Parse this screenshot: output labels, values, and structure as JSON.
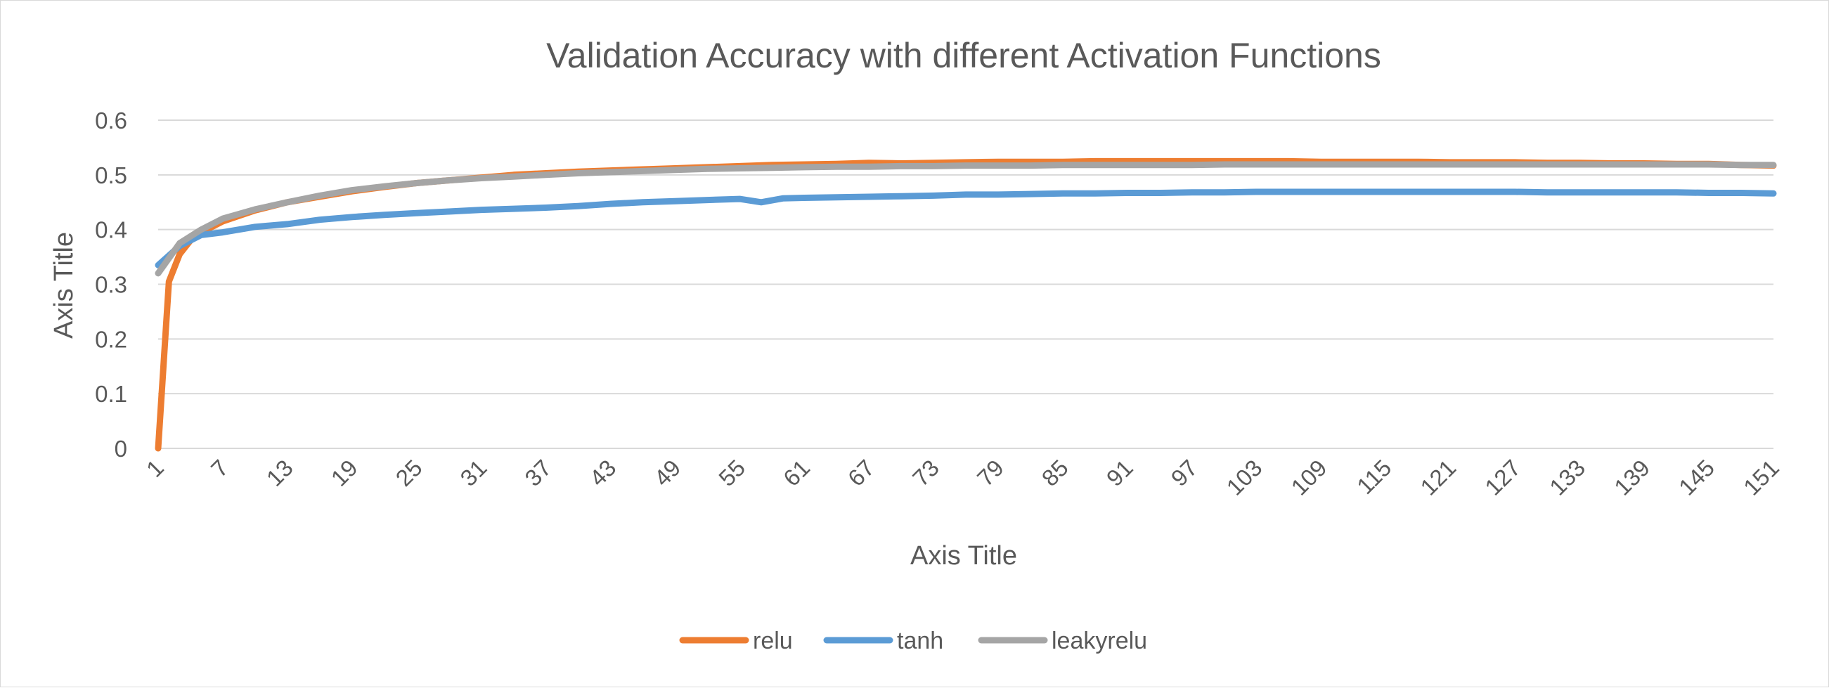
{
  "chart_data": {
    "type": "line",
    "title": "Validation Accuracy with different Activation Functions",
    "xlabel": "Axis Title",
    "ylabel": "Axis Title",
    "ylim": [
      0,
      0.6
    ],
    "yticks": [
      "0",
      "0.1",
      "0.2",
      "0.3",
      "0.4",
      "0.5",
      "0.6"
    ],
    "x_start": 1,
    "x_end": 151,
    "xticks": [
      "1",
      "7",
      "13",
      "19",
      "25",
      "31",
      "37",
      "43",
      "49",
      "55",
      "61",
      "67",
      "73",
      "79",
      "85",
      "91",
      "97",
      "103",
      "109",
      "115",
      "121",
      "127",
      "133",
      "139",
      "145",
      "151"
    ],
    "grid": "horizontal",
    "legend_position": "bottom",
    "series": [
      {
        "name": "relu",
        "color": "#ED7D31",
        "points": [
          [
            1,
            0.0
          ],
          [
            2,
            0.305
          ],
          [
            3,
            0.355
          ],
          [
            4,
            0.38
          ],
          [
            5,
            0.395
          ],
          [
            7,
            0.415
          ],
          [
            10,
            0.435
          ],
          [
            13,
            0.45
          ],
          [
            16,
            0.46
          ],
          [
            19,
            0.47
          ],
          [
            22,
            0.478
          ],
          [
            25,
            0.485
          ],
          [
            28,
            0.49
          ],
          [
            31,
            0.495
          ],
          [
            34,
            0.5
          ],
          [
            37,
            0.503
          ],
          [
            40,
            0.506
          ],
          [
            43,
            0.508
          ],
          [
            46,
            0.51
          ],
          [
            49,
            0.512
          ],
          [
            52,
            0.514
          ],
          [
            55,
            0.516
          ],
          [
            58,
            0.518
          ],
          [
            61,
            0.519
          ],
          [
            64,
            0.52
          ],
          [
            67,
            0.522
          ],
          [
            70,
            0.521
          ],
          [
            73,
            0.522
          ],
          [
            76,
            0.523
          ],
          [
            79,
            0.524
          ],
          [
            82,
            0.524
          ],
          [
            85,
            0.524
          ],
          [
            88,
            0.525
          ],
          [
            91,
            0.525
          ],
          [
            94,
            0.525
          ],
          [
            97,
            0.525
          ],
          [
            100,
            0.525
          ],
          [
            103,
            0.525
          ],
          [
            106,
            0.525
          ],
          [
            109,
            0.524
          ],
          [
            112,
            0.524
          ],
          [
            115,
            0.524
          ],
          [
            118,
            0.524
          ],
          [
            121,
            0.523
          ],
          [
            124,
            0.523
          ],
          [
            127,
            0.523
          ],
          [
            130,
            0.522
          ],
          [
            133,
            0.522
          ],
          [
            136,
            0.521
          ],
          [
            139,
            0.521
          ],
          [
            142,
            0.52
          ],
          [
            145,
            0.52
          ],
          [
            148,
            0.518
          ],
          [
            151,
            0.517
          ]
        ]
      },
      {
        "name": "tanh",
        "color": "#5B9BD5",
        "points": [
          [
            1,
            0.335
          ],
          [
            3,
            0.37
          ],
          [
            5,
            0.39
          ],
          [
            7,
            0.395
          ],
          [
            10,
            0.405
          ],
          [
            13,
            0.41
          ],
          [
            16,
            0.418
          ],
          [
            19,
            0.423
          ],
          [
            22,
            0.427
          ],
          [
            25,
            0.43
          ],
          [
            28,
            0.433
          ],
          [
            31,
            0.436
          ],
          [
            34,
            0.438
          ],
          [
            37,
            0.44
          ],
          [
            40,
            0.443
          ],
          [
            43,
            0.447
          ],
          [
            46,
            0.45
          ],
          [
            49,
            0.452
          ],
          [
            52,
            0.454
          ],
          [
            55,
            0.456
          ],
          [
            57,
            0.45
          ],
          [
            59,
            0.457
          ],
          [
            61,
            0.458
          ],
          [
            64,
            0.459
          ],
          [
            67,
            0.46
          ],
          [
            70,
            0.461
          ],
          [
            73,
            0.462
          ],
          [
            76,
            0.464
          ],
          [
            79,
            0.464
          ],
          [
            82,
            0.465
          ],
          [
            85,
            0.466
          ],
          [
            88,
            0.466
          ],
          [
            91,
            0.467
          ],
          [
            94,
            0.467
          ],
          [
            97,
            0.468
          ],
          [
            100,
            0.468
          ],
          [
            103,
            0.469
          ],
          [
            106,
            0.469
          ],
          [
            109,
            0.469
          ],
          [
            112,
            0.469
          ],
          [
            115,
            0.469
          ],
          [
            118,
            0.469
          ],
          [
            121,
            0.469
          ],
          [
            124,
            0.469
          ],
          [
            127,
            0.469
          ],
          [
            130,
            0.468
          ],
          [
            133,
            0.468
          ],
          [
            136,
            0.468
          ],
          [
            139,
            0.468
          ],
          [
            142,
            0.468
          ],
          [
            145,
            0.467
          ],
          [
            148,
            0.467
          ],
          [
            151,
            0.466
          ]
        ]
      },
      {
        "name": "leakyrelu",
        "color": "#A5A5A5",
        "points": [
          [
            1,
            0.32
          ],
          [
            3,
            0.375
          ],
          [
            5,
            0.4
          ],
          [
            7,
            0.42
          ],
          [
            10,
            0.437
          ],
          [
            13,
            0.45
          ],
          [
            16,
            0.462
          ],
          [
            19,
            0.472
          ],
          [
            22,
            0.479
          ],
          [
            25,
            0.485
          ],
          [
            28,
            0.49
          ],
          [
            31,
            0.494
          ],
          [
            34,
            0.497
          ],
          [
            37,
            0.5
          ],
          [
            40,
            0.503
          ],
          [
            43,
            0.505
          ],
          [
            46,
            0.507
          ],
          [
            49,
            0.509
          ],
          [
            52,
            0.511
          ],
          [
            55,
            0.512
          ],
          [
            58,
            0.513
          ],
          [
            61,
            0.514
          ],
          [
            64,
            0.515
          ],
          [
            67,
            0.515
          ],
          [
            70,
            0.516
          ],
          [
            73,
            0.516
          ],
          [
            76,
            0.517
          ],
          [
            79,
            0.517
          ],
          [
            82,
            0.517
          ],
          [
            85,
            0.518
          ],
          [
            88,
            0.518
          ],
          [
            91,
            0.518
          ],
          [
            94,
            0.518
          ],
          [
            97,
            0.518
          ],
          [
            100,
            0.519
          ],
          [
            103,
            0.519
          ],
          [
            106,
            0.519
          ],
          [
            109,
            0.519
          ],
          [
            112,
            0.519
          ],
          [
            115,
            0.519
          ],
          [
            118,
            0.519
          ],
          [
            121,
            0.519
          ],
          [
            124,
            0.519
          ],
          [
            127,
            0.519
          ],
          [
            130,
            0.519
          ],
          [
            133,
            0.519
          ],
          [
            136,
            0.519
          ],
          [
            139,
            0.519
          ],
          [
            142,
            0.519
          ],
          [
            145,
            0.519
          ],
          [
            148,
            0.518
          ],
          [
            151,
            0.518
          ]
        ]
      }
    ]
  }
}
